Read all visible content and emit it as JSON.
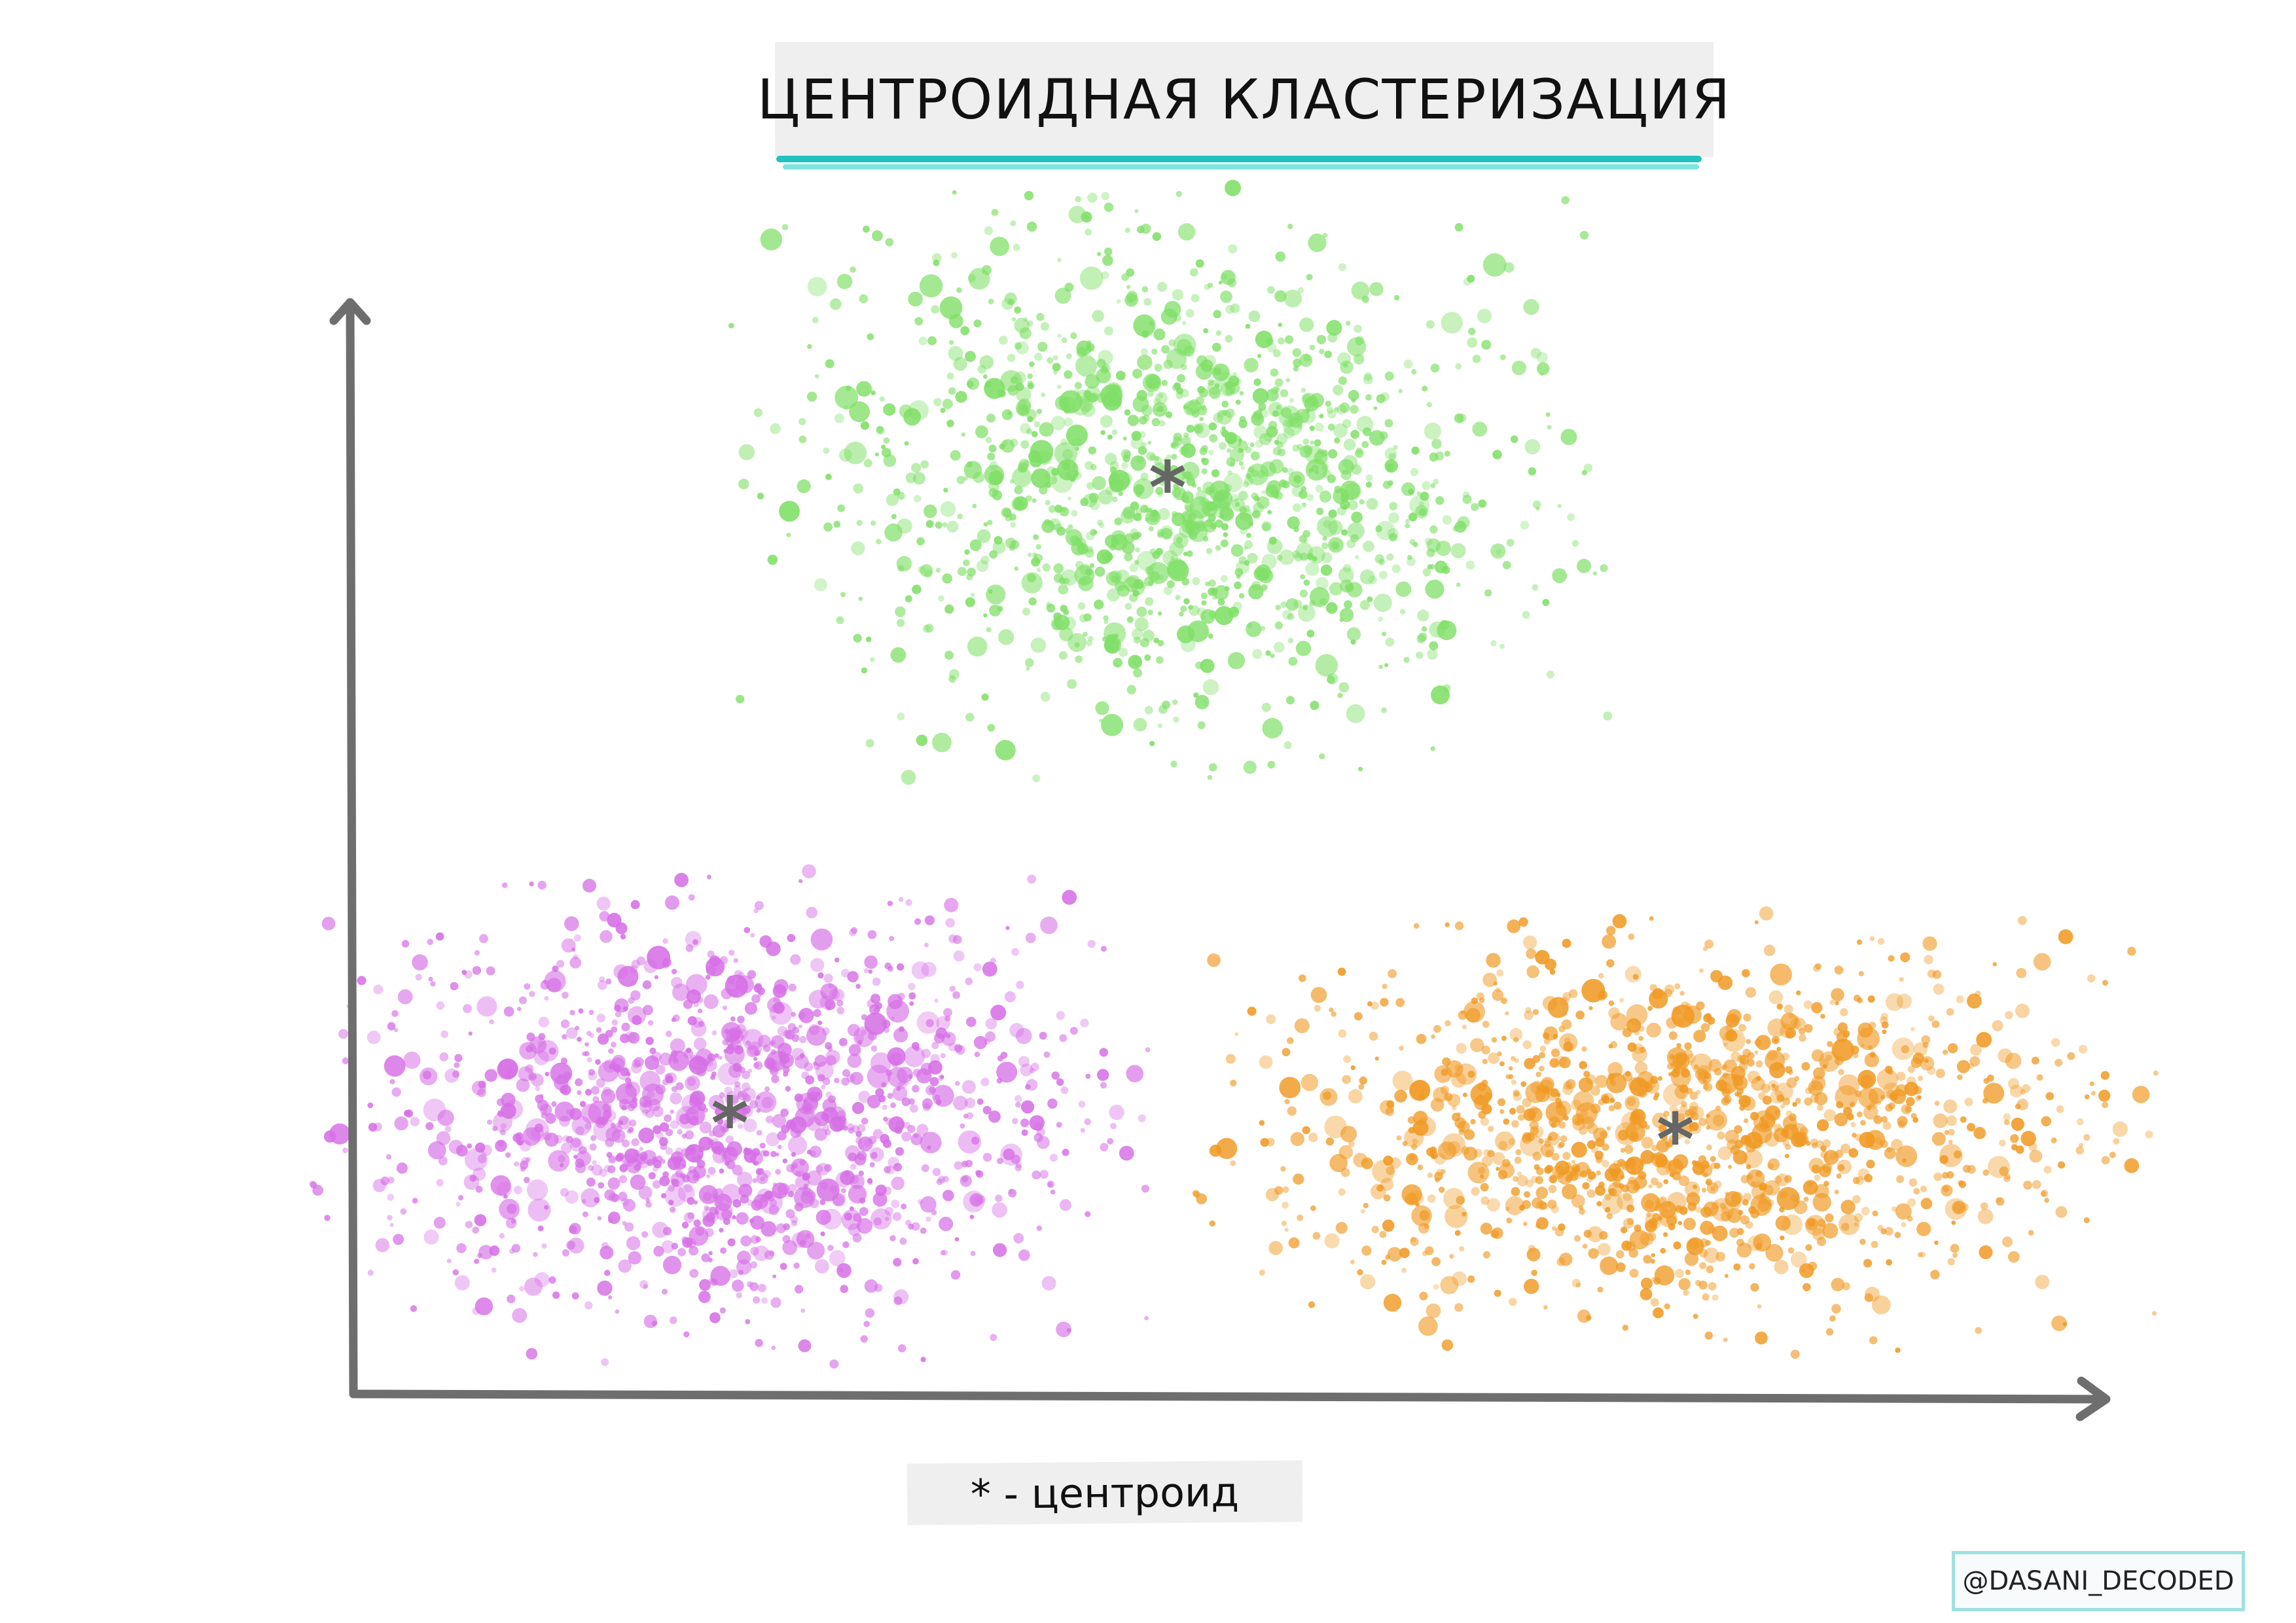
{
  "title": "ЦЕНТРОИДНАЯ КЛАСТЕРИЗАЦИЯ",
  "legend": "* - центроид",
  "credit": "@DASANI_DECODED",
  "centroid_symbol": "*",
  "colors": {
    "axis": "#6e6e6e",
    "centroid": "#666666",
    "title_underline": "#21c3c0",
    "title_box": "#efefef"
  },
  "chart_data": {
    "type": "scatter",
    "clusters": [
      {
        "color": "#7fdf66",
        "centroid": [
          0.465,
          0.84
        ],
        "spread": [
          0.105,
          0.115
        ]
      },
      {
        "color": "#d66fe6",
        "centroid": [
          0.215,
          0.255
        ],
        "spread": [
          0.1,
          0.095
        ]
      },
      {
        "color": "#f09a24",
        "centroid": [
          0.755,
          0.24
        ],
        "spread": [
          0.115,
          0.085
        ]
      }
    ],
    "grid": false
  }
}
